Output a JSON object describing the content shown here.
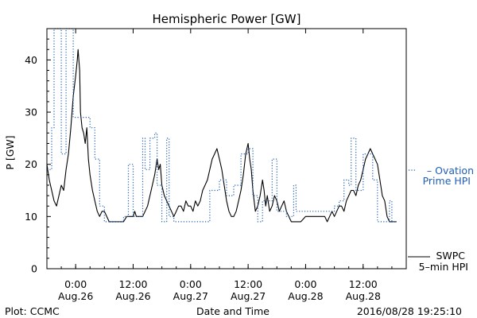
{
  "chart_data": {
    "type": "line",
    "title": "Hemispheric Power [GW]",
    "ylabel": "P [GW]",
    "xlabel": "Date and Time",
    "ylim": [
      0,
      46
    ],
    "xlim": [
      "2016-08-25T18:00",
      "2016-08-28T21:00"
    ],
    "yticks": [
      0,
      10,
      20,
      30,
      40
    ],
    "xticks": [
      {
        "time": "2016-08-26T00:00",
        "label_time": "0:00",
        "label_date": "Aug.26"
      },
      {
        "time": "2016-08-26T12:00",
        "label_time": "12:00",
        "label_date": "Aug.26"
      },
      {
        "time": "2016-08-27T00:00",
        "label_time": "0:00",
        "label_date": "Aug.27"
      },
      {
        "time": "2016-08-27T12:00",
        "label_time": "12:00",
        "label_date": "Aug.27"
      },
      {
        "time": "2016-08-28T00:00",
        "label_time": "0:00",
        "label_date": "Aug.28"
      },
      {
        "time": "2016-08-28T12:00",
        "label_time": "12:00",
        "label_date": "Aug.28"
      }
    ],
    "grid": false,
    "legend_position": "right",
    "series": [
      {
        "name": "SWPC 5-min HPI",
        "legend_lines": [
          "SWPC",
          "5–min HPI"
        ],
        "style": "solid",
        "color": "#000000",
        "points": [
          [
            "2016-08-25T18:00",
            20
          ],
          [
            "2016-08-25T18:30",
            17
          ],
          [
            "2016-08-25T19:00",
            15
          ],
          [
            "2016-08-25T19:30",
            13
          ],
          [
            "2016-08-25T20:00",
            12
          ],
          [
            "2016-08-25T20:30",
            14
          ],
          [
            "2016-08-25T21:00",
            16
          ],
          [
            "2016-08-25T21:30",
            15
          ],
          [
            "2016-08-25T22:00",
            19
          ],
          [
            "2016-08-25T22:30",
            22
          ],
          [
            "2016-08-25T23:00",
            27
          ],
          [
            "2016-08-25T23:30",
            33
          ],
          [
            "2016-08-26T00:00",
            37
          ],
          [
            "2016-08-26T00:20",
            40
          ],
          [
            "2016-08-26T00:30",
            42
          ],
          [
            "2016-08-26T00:50",
            38
          ],
          [
            "2016-08-26T01:00",
            30
          ],
          [
            "2016-08-26T01:20",
            27
          ],
          [
            "2016-08-26T01:40",
            26
          ],
          [
            "2016-08-26T02:00",
            24
          ],
          [
            "2016-08-26T02:20",
            27
          ],
          [
            "2016-08-26T02:40",
            21
          ],
          [
            "2016-08-26T03:00",
            18
          ],
          [
            "2016-08-26T03:30",
            15
          ],
          [
            "2016-08-26T04:00",
            13
          ],
          [
            "2016-08-26T04:30",
            11
          ],
          [
            "2016-08-26T05:00",
            10
          ],
          [
            "2016-08-26T05:30",
            11
          ],
          [
            "2016-08-26T06:00",
            11
          ],
          [
            "2016-08-26T07:00",
            9
          ],
          [
            "2016-08-26T08:00",
            9
          ],
          [
            "2016-08-26T09:00",
            9
          ],
          [
            "2016-08-26T10:00",
            9
          ],
          [
            "2016-08-26T10:40",
            10
          ],
          [
            "2016-08-26T11:20",
            10
          ],
          [
            "2016-08-26T12:00",
            10
          ],
          [
            "2016-08-26T12:20",
            11
          ],
          [
            "2016-08-26T12:40",
            10
          ],
          [
            "2016-08-26T13:20",
            10
          ],
          [
            "2016-08-26T14:00",
            10
          ],
          [
            "2016-08-26T14:30",
            11
          ],
          [
            "2016-08-26T15:00",
            12
          ],
          [
            "2016-08-26T15:30",
            14
          ],
          [
            "2016-08-26T16:00",
            16
          ],
          [
            "2016-08-26T16:30",
            18
          ],
          [
            "2016-08-26T17:00",
            21
          ],
          [
            "2016-08-26T17:20",
            19
          ],
          [
            "2016-08-26T17:40",
            20
          ],
          [
            "2016-08-26T18:00",
            16
          ],
          [
            "2016-08-26T18:30",
            14
          ],
          [
            "2016-08-26T19:00",
            13
          ],
          [
            "2016-08-26T19:30",
            12
          ],
          [
            "2016-08-26T20:00",
            11
          ],
          [
            "2016-08-26T20:30",
            10
          ],
          [
            "2016-08-26T21:00",
            11
          ],
          [
            "2016-08-26T21:30",
            12
          ],
          [
            "2016-08-26T22:00",
            12
          ],
          [
            "2016-08-26T22:30",
            11
          ],
          [
            "2016-08-26T23:00",
            13
          ],
          [
            "2016-08-26T23:30",
            12
          ],
          [
            "2016-08-27T00:00",
            12
          ],
          [
            "2016-08-27T00:30",
            11
          ],
          [
            "2016-08-27T01:00",
            13
          ],
          [
            "2016-08-27T01:30",
            12
          ],
          [
            "2016-08-27T02:00",
            13
          ],
          [
            "2016-08-27T02:30",
            15
          ],
          [
            "2016-08-27T03:00",
            16
          ],
          [
            "2016-08-27T03:30",
            17
          ],
          [
            "2016-08-27T04:00",
            19
          ],
          [
            "2016-08-27T04:30",
            21
          ],
          [
            "2016-08-27T05:00",
            22
          ],
          [
            "2016-08-27T05:30",
            23
          ],
          [
            "2016-08-27T06:00",
            21
          ],
          [
            "2016-08-27T06:30",
            19
          ],
          [
            "2016-08-27T07:00",
            16
          ],
          [
            "2016-08-27T07:30",
            13
          ],
          [
            "2016-08-27T08:00",
            11
          ],
          [
            "2016-08-27T08:30",
            10
          ],
          [
            "2016-08-27T09:00",
            10
          ],
          [
            "2016-08-27T09:30",
            11
          ],
          [
            "2016-08-27T10:00",
            13
          ],
          [
            "2016-08-27T10:30",
            15
          ],
          [
            "2016-08-27T11:00",
            18
          ],
          [
            "2016-08-27T11:30",
            22
          ],
          [
            "2016-08-27T12:00",
            24
          ],
          [
            "2016-08-27T12:20",
            21
          ],
          [
            "2016-08-27T12:40",
            19
          ],
          [
            "2016-08-27T13:00",
            15
          ],
          [
            "2016-08-27T13:30",
            11
          ],
          [
            "2016-08-27T14:00",
            12
          ],
          [
            "2016-08-27T14:30",
            14
          ],
          [
            "2016-08-27T15:00",
            17
          ],
          [
            "2016-08-27T15:20",
            15
          ],
          [
            "2016-08-27T15:40",
            12
          ],
          [
            "2016-08-27T16:00",
            14
          ],
          [
            "2016-08-27T16:30",
            11
          ],
          [
            "2016-08-27T17:00",
            12
          ],
          [
            "2016-08-27T17:30",
            14
          ],
          [
            "2016-08-27T18:00",
            13
          ],
          [
            "2016-08-27T18:30",
            11
          ],
          [
            "2016-08-27T19:00",
            12
          ],
          [
            "2016-08-27T19:30",
            13
          ],
          [
            "2016-08-27T20:00",
            11
          ],
          [
            "2016-08-27T20:30",
            10
          ],
          [
            "2016-08-27T21:00",
            9
          ],
          [
            "2016-08-27T22:00",
            9
          ],
          [
            "2016-08-27T23:00",
            9
          ],
          [
            "2016-08-28T00:00",
            10
          ],
          [
            "2016-08-28T01:00",
            10
          ],
          [
            "2016-08-28T02:00",
            10
          ],
          [
            "2016-08-28T03:00",
            10
          ],
          [
            "2016-08-28T04:00",
            10
          ],
          [
            "2016-08-28T04:30",
            9
          ],
          [
            "2016-08-28T05:00",
            10
          ],
          [
            "2016-08-28T05:30",
            11
          ],
          [
            "2016-08-28T06:00",
            10
          ],
          [
            "2016-08-28T06:30",
            11
          ],
          [
            "2016-08-28T07:00",
            12
          ],
          [
            "2016-08-28T07:30",
            12
          ],
          [
            "2016-08-28T08:00",
            11
          ],
          [
            "2016-08-28T08:30",
            13
          ],
          [
            "2016-08-28T09:00",
            14
          ],
          [
            "2016-08-28T09:30",
            15
          ],
          [
            "2016-08-28T10:00",
            15
          ],
          [
            "2016-08-28T10:30",
            14
          ],
          [
            "2016-08-28T11:00",
            16
          ],
          [
            "2016-08-28T11:30",
            17
          ],
          [
            "2016-08-28T12:00",
            19
          ],
          [
            "2016-08-28T12:30",
            21
          ],
          [
            "2016-08-28T13:00",
            22
          ],
          [
            "2016-08-28T13:30",
            23
          ],
          [
            "2016-08-28T14:00",
            22
          ],
          [
            "2016-08-28T14:30",
            21
          ],
          [
            "2016-08-28T15:00",
            20
          ],
          [
            "2016-08-28T15:30",
            17
          ],
          [
            "2016-08-28T16:00",
            14
          ],
          [
            "2016-08-28T16:30",
            13
          ],
          [
            "2016-08-28T17:00",
            10
          ],
          [
            "2016-08-28T17:30",
            9
          ],
          [
            "2016-08-28T19:00",
            9
          ]
        ]
      },
      {
        "name": "Ovation Prime HPI",
        "legend_lines": [
          "– Ovation",
          "Prime HPI"
        ],
        "style": "dotted",
        "color": "#1f5fb8",
        "points": [
          [
            "2016-08-25T18:00",
            19
          ],
          [
            "2016-08-25T19:00",
            19
          ],
          [
            "2016-08-25T19:00",
            27
          ],
          [
            "2016-08-25T19:30",
            27
          ],
          [
            "2016-08-25T19:30",
            46
          ],
          [
            "2016-08-25T21:00",
            46
          ],
          [
            "2016-08-25T21:00",
            22
          ],
          [
            "2016-08-25T22:00",
            22
          ],
          [
            "2016-08-25T22:00",
            46
          ],
          [
            "2016-08-25T23:30",
            46
          ],
          [
            "2016-08-25T23:30",
            29
          ],
          [
            "2016-08-26T03:00",
            29
          ],
          [
            "2016-08-26T03:00",
            27
          ],
          [
            "2016-08-26T04:00",
            27
          ],
          [
            "2016-08-26T04:00",
            21
          ],
          [
            "2016-08-26T05:00",
            21
          ],
          [
            "2016-08-26T05:00",
            12
          ],
          [
            "2016-08-26T06:00",
            12
          ],
          [
            "2016-08-26T06:00",
            9
          ],
          [
            "2016-08-26T10:00",
            9
          ],
          [
            "2016-08-26T10:00",
            10
          ],
          [
            "2016-08-26T11:00",
            10
          ],
          [
            "2016-08-26T11:00",
            20
          ],
          [
            "2016-08-26T12:00",
            20
          ],
          [
            "2016-08-26T12:00",
            10
          ],
          [
            "2016-08-26T14:00",
            10
          ],
          [
            "2016-08-26T14:00",
            25
          ],
          [
            "2016-08-26T14:30",
            25
          ],
          [
            "2016-08-26T14:30",
            19
          ],
          [
            "2016-08-26T15:30",
            19
          ],
          [
            "2016-08-26T15:30",
            25
          ],
          [
            "2016-08-26T16:30",
            25
          ],
          [
            "2016-08-26T16:30",
            26
          ],
          [
            "2016-08-26T17:00",
            26
          ],
          [
            "2016-08-26T17:00",
            16
          ],
          [
            "2016-08-26T18:00",
            16
          ],
          [
            "2016-08-26T18:00",
            9
          ],
          [
            "2016-08-26T19:00",
            9
          ],
          [
            "2016-08-26T19:00",
            25
          ],
          [
            "2016-08-26T19:30",
            25
          ],
          [
            "2016-08-26T19:30",
            10
          ],
          [
            "2016-08-26T20:30",
            10
          ],
          [
            "2016-08-26T20:30",
            9
          ],
          [
            "2016-08-27T04:00",
            9
          ],
          [
            "2016-08-27T04:00",
            15
          ],
          [
            "2016-08-27T06:00",
            15
          ],
          [
            "2016-08-27T06:00",
            17
          ],
          [
            "2016-08-27T07:30",
            17
          ],
          [
            "2016-08-27T07:30",
            14
          ],
          [
            "2016-08-27T09:00",
            14
          ],
          [
            "2016-08-27T09:00",
            16
          ],
          [
            "2016-08-27T10:30",
            16
          ],
          [
            "2016-08-27T10:30",
            22
          ],
          [
            "2016-08-27T12:00",
            22
          ],
          [
            "2016-08-27T12:00",
            23
          ],
          [
            "2016-08-27T13:00",
            23
          ],
          [
            "2016-08-27T13:00",
            14
          ],
          [
            "2016-08-27T14:00",
            14
          ],
          [
            "2016-08-27T14:00",
            9
          ],
          [
            "2016-08-27T15:00",
            9
          ],
          [
            "2016-08-27T15:00",
            13
          ],
          [
            "2016-08-27T17:00",
            13
          ],
          [
            "2016-08-27T17:00",
            21
          ],
          [
            "2016-08-27T18:00",
            21
          ],
          [
            "2016-08-27T18:00",
            11
          ],
          [
            "2016-08-27T20:00",
            11
          ],
          [
            "2016-08-27T20:00",
            10
          ],
          [
            "2016-08-27T21:30",
            10
          ],
          [
            "2016-08-27T21:30",
            16
          ],
          [
            "2016-08-27T22:00",
            16
          ],
          [
            "2016-08-27T22:00",
            11
          ],
          [
            "2016-08-28T06:00",
            11
          ],
          [
            "2016-08-28T06:00",
            12
          ],
          [
            "2016-08-28T07:00",
            12
          ],
          [
            "2016-08-28T07:00",
            13
          ],
          [
            "2016-08-28T08:00",
            13
          ],
          [
            "2016-08-28T08:00",
            17
          ],
          [
            "2016-08-28T09:00",
            17
          ],
          [
            "2016-08-28T09:00",
            16
          ],
          [
            "2016-08-28T09:30",
            16
          ],
          [
            "2016-08-28T09:30",
            25
          ],
          [
            "2016-08-28T10:30",
            25
          ],
          [
            "2016-08-28T10:30",
            15
          ],
          [
            "2016-08-28T12:00",
            15
          ],
          [
            "2016-08-28T12:00",
            22
          ],
          [
            "2016-08-28T14:00",
            22
          ],
          [
            "2016-08-28T14:00",
            17
          ],
          [
            "2016-08-28T15:00",
            17
          ],
          [
            "2016-08-28T15:00",
            9
          ],
          [
            "2016-08-28T17:30",
            9
          ],
          [
            "2016-08-28T17:30",
            13
          ],
          [
            "2016-08-28T18:00",
            13
          ],
          [
            "2016-08-28T18:00",
            9
          ],
          [
            "2016-08-28T19:00",
            9
          ]
        ]
      }
    ]
  },
  "footer": {
    "source": "Plot: CCMC",
    "timestamp": "2016/08/28 19:25:10"
  }
}
